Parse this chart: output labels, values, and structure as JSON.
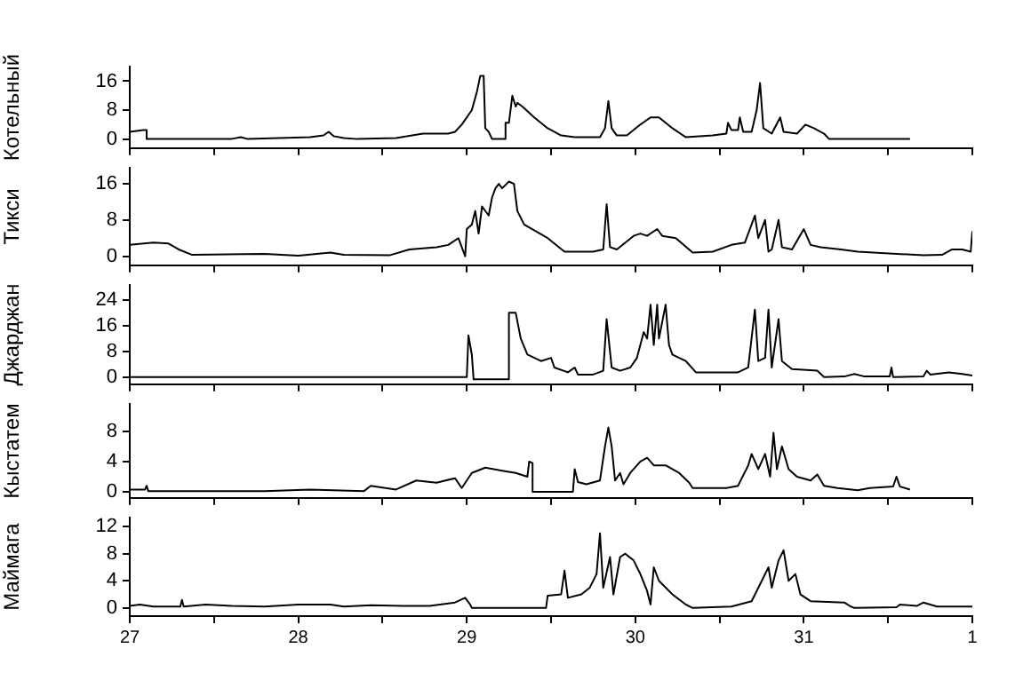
{
  "chart_data": [
    {
      "type": "line",
      "ylabel": "Котельный",
      "color": "#000000",
      "tick_labels": "y",
      "xlim": [
        "--07-27",
        "--08-01"
      ],
      "xticks": [
        "--07-27",
        {
          "value": "--07-27T12:00",
          "label": null
        },
        "--07-28",
        {
          "value": "--07-28T12:00",
          "label": null
        },
        "--07-29",
        {
          "value": "--07-29T12:00",
          "label": null
        },
        "--07-30",
        {
          "value": "--07-30T12:00",
          "label": null
        },
        "--07-31",
        {
          "value": "--07-31T12:00",
          "label": null
        },
        "--08-01"
      ],
      "ylim": [
        -2.5,
        20
      ],
      "yticks": [
        0,
        8,
        16
      ],
      "x": [
        "--07-27T00:00",
        "--07-27T01:55",
        "--07-27T02:24",
        "--07-27T02:24",
        "--07-27T14:24",
        "--07-27T15:50",
        "--07-27T16:48",
        "--07-28T01:41",
        "--07-28T03:36",
        "--07-28T04:19",
        "--07-28T05:02",
        "--07-28T06:29",
        "--07-28T08:24",
        "--07-28T13:55",
        "--07-28T17:46",
        "--07-28T21:22",
        "--07-28T22:19",
        "--07-28T23:17",
        "--07-29T00:43",
        "--07-29T01:26",
        "--07-29T01:55",
        "--07-29T02:24",
        "--07-29T02:38",
        "--07-29T03:07",
        "--07-29T03:36",
        "--07-29T05:31",
        "--07-29T05:31",
        "--07-29T06:00",
        "--07-29T06:29",
        "--07-29T06:58",
        "--07-29T07:12",
        "--07-29T07:55",
        "--07-29T09:36",
        "--07-29T11:31",
        "--07-29T13:26",
        "--07-29T15:22",
        "--07-29T18:58",
        "--07-29T19:41",
        "--07-29T20:10",
        "--07-29T20:38",
        "--07-29T21:22",
        "--07-29T22:48",
        "--07-30T00:43",
        "--07-30T02:10",
        "--07-30T03:22",
        "--07-30T05:17",
        "--07-30T07:12",
        "--07-30T11:02",
        "--07-30T12:58",
        "--07-30T13:12",
        "--07-30T13:41",
        "--07-30T14:38",
        "--07-30T14:53",
        "--07-30T15:22",
        "--07-30T16:34",
        "--07-30T17:17",
        "--07-30T17:46",
        "--07-30T18:14",
        "--07-30T19:26",
        "--07-30T20:38",
        "--07-30T21:07",
        "--07-30T23:02",
        "--07-31T00:14",
        "--07-31T01:26",
        "--07-31T02:53",
        "--07-31T03:36",
        "--07-31T15:07"
      ],
      "values": [
        2,
        2.5,
        2.5,
        0,
        0,
        0.5,
        0,
        0.5,
        1,
        2,
        0.8,
        0.3,
        0,
        0.3,
        1.5,
        1.5,
        2,
        4,
        8,
        13,
        17.5,
        17.5,
        3,
        2,
        0,
        0,
        4.5,
        4.5,
        12,
        9,
        10,
        9,
        6,
        3,
        1,
        0.5,
        0.5,
        3,
        10.5,
        3,
        1,
        1,
        4,
        6,
        6,
        3,
        0.5,
        1,
        1.5,
        4.5,
        2.5,
        2.5,
        6,
        2,
        2,
        8,
        15.5,
        3,
        1.5,
        6,
        2,
        1.5,
        4,
        3,
        1.5,
        0,
        0
      ]
    },
    {
      "type": "line",
      "ylabel": "Тикси",
      "color": "#000000",
      "tick_labels": "y",
      "xlim": [
        "--07-27",
        "--08-01"
      ],
      "xticks": [
        "--07-27",
        {
          "value": "--07-27T12:00",
          "label": null
        },
        "--07-28",
        {
          "value": "--07-28T12:00",
          "label": null
        },
        "--07-29",
        {
          "value": "--07-29T12:00",
          "label": null
        },
        "--07-30",
        {
          "value": "--07-30T12:00",
          "label": null
        },
        "--07-31",
        {
          "value": "--07-31T12:00",
          "label": null
        },
        "--08-01"
      ],
      "ylim": [
        -2,
        19.5
      ],
      "yticks": [
        0,
        8,
        16
      ],
      "x": [
        "--07-27T00:00",
        "--07-27T03:22",
        "--07-27T05:31",
        "--07-27T06:58",
        "--07-27T08:53",
        "--07-27T19:12",
        "--07-28T00:00",
        "--07-28T04:34",
        "--07-28T06:29",
        "--07-28T12:58",
        "--07-28T15:50",
        "--07-28T19:41",
        "--07-28T21:22",
        "--07-28T22:48",
        "--07-28T23:46",
        "--07-29T00:00",
        "--07-29T00:43",
        "--07-29T01:12",
        "--07-29T01:41",
        "--07-29T02:10",
        "--07-29T03:07",
        "--07-29T03:36",
        "--07-29T04:05",
        "--07-29T04:34",
        "--07-29T05:02",
        "--07-29T06:00",
        "--07-29T06:43",
        "--07-29T07:12",
        "--07-29T08:10",
        "--07-29T11:31",
        "--07-29T13:55",
        "--07-29T18:00",
        "--07-29T19:26",
        "--07-29T19:55",
        "--07-29T20:24",
        "--07-29T21:22",
        "--07-29T23:46",
        "--07-30T00:43",
        "--07-30T01:41",
        "--07-30T03:07",
        "--07-30T03:50",
        "--07-30T05:46",
        "--07-30T08:10",
        "--07-30T11:02",
        "--07-30T13:41",
        "--07-30T15:36",
        "--07-30T17:02",
        "--07-30T17:31",
        "--07-30T18:29",
        "--07-30T18:58",
        "--07-30T19:26",
        "--07-30T20:24",
        "--07-30T20:53",
        "--07-30T22:19",
        "--07-31T00:00",
        "--07-31T00:58",
        "--07-31T02:24",
        "--07-31T05:17",
        "--07-31T07:41",
        "--07-31T17:02",
        "--07-31T19:41",
        "--07-31T21:07",
        "--07-31T22:34",
        "--07-31T23:46",
        "--08-01T00:00"
      ],
      "values": [
        2.5,
        3,
        2.8,
        1.5,
        0.3,
        0.5,
        0.1,
        0.8,
        0.3,
        0.2,
        1.5,
        2,
        2.5,
        4,
        0,
        6,
        7,
        10,
        5,
        11,
        9,
        13,
        15,
        16,
        15,
        16.5,
        16,
        10,
        7,
        4,
        1,
        1,
        1.5,
        11.5,
        2,
        1.5,
        4.5,
        5,
        4.5,
        6,
        4.5,
        4,
        0.8,
        1,
        2.5,
        3,
        9,
        4,
        8,
        1,
        1.5,
        8,
        2,
        1.5,
        6,
        2.5,
        2,
        1.5,
        1,
        0.2,
        0.3,
        1.5,
        1.5,
        1,
        5.5
      ]
    },
    {
      "type": "line",
      "ylabel": "Джарджан",
      "color": "#000000",
      "tick_labels": "y",
      "xlim": [
        "--07-27",
        "--08-01"
      ],
      "xticks": [
        "--07-27",
        {
          "value": "--07-27T12:00",
          "label": null
        },
        "--07-28",
        {
          "value": "--07-28T12:00",
          "label": null
        },
        "--07-29",
        {
          "value": "--07-29T12:00",
          "label": null
        },
        "--07-30",
        {
          "value": "--07-30T12:00",
          "label": null
        },
        "--07-31",
        {
          "value": "--07-31T12:00",
          "label": null
        },
        "--08-01"
      ],
      "ylim": [
        -2.2,
        28.6
      ],
      "yticks": [
        0,
        8,
        16,
        24
      ],
      "x": [
        "--07-27T00:00",
        "--07-29T00:00",
        "--07-29T00:14",
        "--07-29T00:43",
        "--07-29T00:58",
        "--07-29T06:00",
        "--07-29T06:00",
        "--07-29T06:58",
        "--07-29T07:41",
        "--07-29T08:38",
        "--07-29T10:34",
        "--07-29T12:00",
        "--07-29T12:29",
        "--07-29T14:24",
        "--07-29T15:22",
        "--07-29T15:50",
        "--07-29T18:00",
        "--07-29T19:26",
        "--07-29T19:55",
        "--07-29T20:38",
        "--07-29T21:50",
        "--07-29T23:17",
        "--07-30T00:14",
        "--07-30T01:12",
        "--07-30T01:41",
        "--07-30T02:10",
        "--07-30T02:38",
        "--07-30T03:07",
        "--07-30T03:22",
        "--07-30T04:19",
        "--07-30T04:48",
        "--07-30T05:17",
        "--07-30T07:12",
        "--07-30T08:38",
        "--07-30T14:38",
        "--07-30T16:05",
        "--07-30T17:02",
        "--07-30T17:31",
        "--07-30T18:29",
        "--07-30T18:58",
        "--07-30T19:26",
        "--07-30T20:24",
        "--07-30T20:53",
        "--07-30T22:19",
        "--07-31T01:55",
        "--07-31T02:53",
        "--07-31T05:46",
        "--07-31T07:12",
        "--07-31T08:38",
        "--07-31T12:14",
        "--07-31T12:29",
        "--07-31T12:43",
        "--07-31T17:02",
        "--07-31T17:31",
        "--07-31T18:00",
        "--07-31T20:38",
        "--07-31T22:34",
        "--08-01T00:00"
      ],
      "values": [
        0,
        0,
        13,
        7,
        -0.7,
        -0.7,
        20,
        20,
        12,
        7,
        5,
        6,
        3,
        1.5,
        3,
        0.8,
        0.8,
        2,
        18,
        3,
        2,
        3,
        6,
        14,
        12,
        22.5,
        10,
        22.5,
        12,
        22.5,
        10,
        7,
        5,
        1.5,
        1.5,
        3,
        21,
        5,
        6,
        21,
        3,
        18,
        5,
        2.5,
        2,
        0,
        0.2,
        1,
        0.2,
        0.2,
        3,
        0,
        0.2,
        2,
        0.8,
        1.5,
        1,
        0.5
      ]
    },
    {
      "type": "line",
      "ylabel": "Кыстатем",
      "color": "#000000",
      "tick_labels": "y",
      "xlim": [
        "--07-27",
        "--08-01"
      ],
      "xticks": [
        "--07-27",
        {
          "value": "--07-27T12:00",
          "label": null
        },
        "--07-28",
        {
          "value": "--07-28T12:00",
          "label": null
        },
        "--07-29",
        {
          "value": "--07-29T12:00",
          "label": null
        },
        "--07-30",
        {
          "value": "--07-30T12:00",
          "label": null
        },
        "--07-31",
        {
          "value": "--07-31T12:00",
          "label": null
        },
        "--08-01"
      ],
      "ylim": [
        -0.8,
        11.6
      ],
      "yticks": [
        0,
        4,
        8
      ],
      "x": [
        "--07-27T00:00",
        "--07-27T02:10",
        "--07-27T02:24",
        "--07-27T02:38",
        "--07-27T09:50",
        "--07-27T19:12",
        "--07-28T01:41",
        "--07-28T09:22",
        "--07-28T10:19",
        "--07-28T13:55",
        "--07-28T16:48",
        "--07-28T19:41",
        "--07-28T22:19",
        "--07-28T23:17",
        "--07-29T00:43",
        "--07-29T02:38",
        "--07-29T05:02",
        "--07-29T06:58",
        "--07-29T08:38",
        "--07-29T08:53",
        "--07-29T09:22",
        "--07-29T09:22",
        "--07-29T15:07",
        "--07-29T15:22",
        "--07-29T15:50",
        "--07-29T17:02",
        "--07-29T18:58",
        "--07-29T19:41",
        "--07-29T20:10",
        "--07-29T20:38",
        "--07-29T21:07",
        "--07-29T21:50",
        "--07-29T22:19",
        "--07-29T23:17",
        "--07-30T00:43",
        "--07-30T01:41",
        "--07-30T02:38",
        "--07-30T04:19",
        "--07-30T06:14",
        "--07-30T07:41",
        "--07-30T08:10",
        "--07-30T12:58",
        "--07-30T14:38",
        "--07-30T16:05",
        "--07-30T16:34",
        "--07-30T17:31",
        "--07-30T18:29",
        "--07-30T19:12",
        "--07-30T19:41",
        "--07-30T20:10",
        "--07-30T20:53",
        "--07-30T21:50",
        "--07-30T23:02",
        "--07-31T00:58",
        "--07-31T01:55",
        "--07-31T02:53",
        "--07-31T04:48",
        "--07-31T07:41",
        "--07-31T09:22",
        "--07-31T12:43",
        "--07-31T13:12",
        "--07-31T13:41",
        "--07-31T15:07"
      ],
      "values": [
        0.3,
        0.3,
        0.8,
        0.1,
        0.1,
        0.1,
        0.3,
        0.1,
        0.8,
        0.3,
        1.5,
        1.2,
        1.8,
        0.5,
        2.5,
        3.2,
        2.8,
        2.5,
        2,
        4,
        3.8,
        0,
        0,
        3,
        1.3,
        1,
        1.5,
        6,
        8.5,
        6,
        1.5,
        2.5,
        1,
        2.5,
        4,
        4.5,
        3.5,
        3.5,
        2.5,
        1.2,
        0.5,
        0.5,
        0.8,
        3.5,
        5,
        3,
        5,
        2,
        7.8,
        3,
        6,
        3,
        2,
        1.5,
        2.3,
        0.8,
        0.5,
        0.2,
        0.5,
        0.7,
        2,
        0.7,
        0.3
      ]
    },
    {
      "type": "line",
      "ylabel": "Маймага",
      "color": "#000000",
      "xlim": [
        "--07-27",
        "--08-01"
      ],
      "xticks": [
        {
          "value": "--07-27",
          "label": "27"
        },
        {
          "value": "--07-27T12:00",
          "label": null
        },
        {
          "value": "--07-28",
          "label": "28"
        },
        {
          "value": "--07-28T12:00",
          "label": null
        },
        {
          "value": "--07-29",
          "label": "29"
        },
        {
          "value": "--07-29T12:00",
          "label": null
        },
        {
          "value": "--07-30",
          "label": "30"
        },
        {
          "value": "--07-30T12:00",
          "label": null
        },
        {
          "value": "--07-31",
          "label": "31"
        },
        {
          "value": "--07-31T12:00",
          "label": null
        },
        {
          "value": "--08-01",
          "label": "1"
        }
      ],
      "ylim": [
        -1.2,
        13.3
      ],
      "yticks": [
        0,
        4,
        8,
        12
      ],
      "x": [
        "--07-27T00:00",
        "--07-27T01:26",
        "--07-27T03:22",
        "--07-27T07:12",
        "--07-27T07:26",
        "--07-27T07:41",
        "--07-27T10:48",
        "--07-27T14:38",
        "--07-27T19:12",
        "--07-28T00:00",
        "--07-28T04:34",
        "--07-28T06:29",
        "--07-28T10:19",
        "--07-28T14:53",
        "--07-28T18:43",
        "--07-28T22:19",
        "--07-28T23:46",
        "--07-29T00:29",
        "--07-29T00:43",
        "--07-29T11:17",
        "--07-29T11:31",
        "--07-29T13:26",
        "--07-29T13:55",
        "--07-29T14:24",
        "--07-29T16:19",
        "--07-29T17:31",
        "--07-29T18:29",
        "--07-29T18:58",
        "--07-29T19:26",
        "--07-29T20:24",
        "--07-29T20:53",
        "--07-29T21:50",
        "--07-29T22:34",
        "--07-29T23:46",
        "--07-30T00:43",
        "--07-30T01:41",
        "--07-30T02:10",
        "--07-30T02:38",
        "--07-30T03:22",
        "--07-30T05:17",
        "--07-30T07:12",
        "--07-30T08:10",
        "--07-30T13:41",
        "--07-30T16:34",
        "--07-30T18:58",
        "--07-30T19:26",
        "--07-30T20:24",
        "--07-30T21:07",
        "--07-30T21:50",
        "--07-30T22:48",
        "--07-30T23:31",
        "--07-31T00:58",
        "--07-31T05:46",
        "--07-31T06:43",
        "--07-31T07:12",
        "--07-31T13:12",
        "--07-31T13:41",
        "--07-31T16:05",
        "--07-31T17:02",
        "--07-31T18:58",
        "--08-01T00:00"
      ],
      "values": [
        0.3,
        0.5,
        0.2,
        0.2,
        1.2,
        0.2,
        0.5,
        0.3,
        0.2,
        0.5,
        0.5,
        0.2,
        0.4,
        0.3,
        0.3,
        0.8,
        1.5,
        0.5,
        0,
        0,
        1.8,
        2,
        5.5,
        1.5,
        2,
        3,
        5,
        11,
        3,
        7.5,
        2,
        7.5,
        8,
        7,
        5,
        2.5,
        0.5,
        6,
        4,
        2,
        0.5,
        0,
        0.2,
        1,
        6,
        3,
        7,
        8.5,
        4,
        5,
        2,
        1,
        0.8,
        0.2,
        0,
        0.1,
        0.5,
        0.3,
        0.8,
        0.2,
        0.2
      ]
    }
  ]
}
